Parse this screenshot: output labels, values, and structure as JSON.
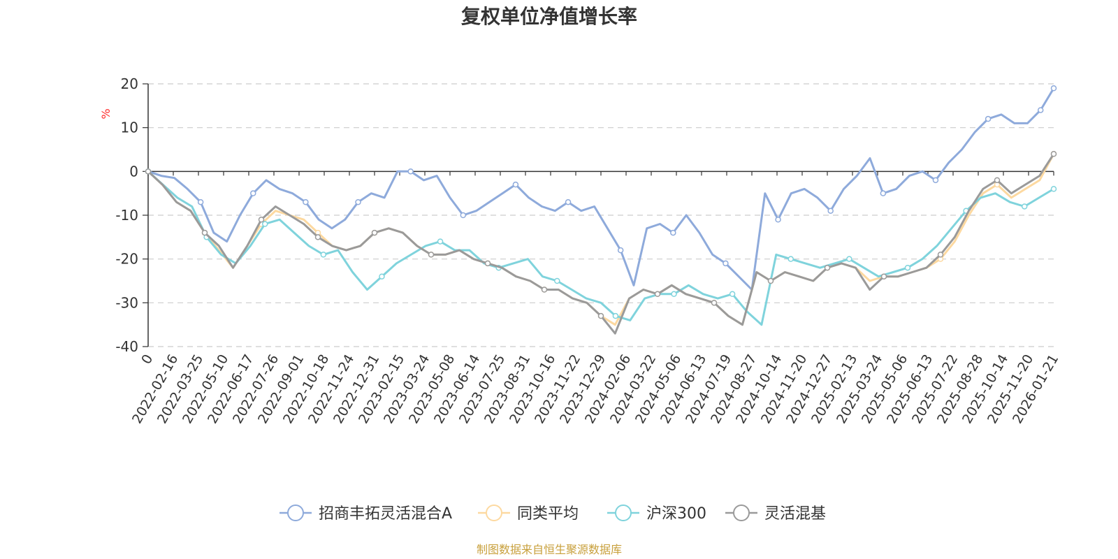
{
  "chart_data": {
    "type": "line",
    "title": "复权单位净值增长率",
    "ylabel": "%",
    "ylim": [
      -40,
      20
    ],
    "yticks": [
      20,
      10,
      0,
      -10,
      -20,
      -30,
      -40
    ],
    "x_tick_labels": [
      "0",
      "2022-02-16",
      "2022-03-25",
      "2022-05-10",
      "2022-06-17",
      "2022-07-26",
      "2022-09-01",
      "2022-10-18",
      "2022-11-24",
      "2022-12-31",
      "2023-02-15",
      "2023-03-24",
      "2023-05-08",
      "2023-06-14",
      "2023-07-25",
      "2023-08-31",
      "2023-10-16",
      "2023-11-22",
      "2023-12-29",
      "2024-02-06",
      "2024-03-22",
      "2024-05-06",
      "2024-06-13",
      "2024-07-19",
      "2024-08-27",
      "2024-10-14",
      "2024-11-20",
      "2024-12-27",
      "2025-02-13",
      "2025-03-24",
      "2025-05-06",
      "2025-06-13",
      "2025-07-22",
      "2025-08-28",
      "2025-10-14",
      "2025-11-20",
      "2026-01-21"
    ],
    "grid": "horizontal-dashed",
    "legend_position": "bottom-center",
    "series": [
      {
        "name": "招商丰拓灵活混合A",
        "color": "#8eaadb",
        "values": [
          0,
          -1,
          -1.5,
          -4,
          -7,
          -14,
          -16,
          -10,
          -5,
          -2,
          -4,
          -5,
          -7,
          -11,
          -13,
          -11,
          -7,
          -5,
          -6,
          0,
          0,
          -2,
          -1,
          -6,
          -10,
          -9,
          -7,
          -5,
          -3,
          -6,
          -8,
          -9,
          -7,
          -9,
          -8,
          -13,
          -18,
          -26,
          -13,
          -12,
          -14,
          -10,
          -14,
          -19,
          -21,
          -24,
          -27,
          -5,
          -11,
          -5,
          -4,
          -6,
          -9,
          -4,
          -1,
          3,
          -5,
          -4,
          -1,
          0,
          -2,
          2,
          5,
          9,
          12,
          13,
          11,
          11,
          14,
          19
        ]
      },
      {
        "name": "同类平均",
        "color": "#fdd9a0",
        "values": [
          0,
          -3,
          -7,
          -9,
          -14,
          -18,
          -22,
          -17,
          -12,
          -9,
          -10,
          -11,
          -14,
          -17,
          -18,
          -17,
          -14,
          -13,
          -14,
          -17,
          -19,
          -19,
          -18,
          -20,
          -21,
          -22,
          -24,
          -25,
          -27,
          -27,
          -29,
          -30,
          -33,
          -35,
          -29,
          -27,
          -28,
          -26,
          -28,
          -29,
          -30,
          -33,
          -35,
          -23,
          -25,
          -23,
          -24,
          -25,
          -22,
          -21,
          -22,
          -25,
          -24,
          -24,
          -23,
          -22,
          -20,
          -16,
          -10,
          -5,
          -3,
          -6,
          -4,
          -2,
          4
        ]
      },
      {
        "name": "沪深300",
        "color": "#7fd3dc",
        "values": [
          0,
          -3,
          -6,
          -8,
          -15,
          -19,
          -21,
          -17,
          -12,
          -11,
          -14,
          -17,
          -19,
          -18,
          -23,
          -27,
          -24,
          -21,
          -19,
          -17,
          -16,
          -18,
          -18,
          -21,
          -22,
          -21,
          -20,
          -24,
          -25,
          -27,
          -29,
          -30,
          -33,
          -34,
          -29,
          -28,
          -28,
          -26,
          -28,
          -29,
          -28,
          -32,
          -35,
          -19,
          -20,
          -21,
          -22,
          -21,
          -20,
          -22,
          -24,
          -23,
          -22,
          -20,
          -17,
          -13,
          -9,
          -6,
          -5,
          -7,
          -8,
          -6,
          -4
        ]
      },
      {
        "name": "灵活混基",
        "color": "#9a9a9a",
        "values": [
          0,
          -3,
          -7,
          -9,
          -14,
          -17,
          -22,
          -17,
          -11,
          -8,
          -10,
          -12,
          -15,
          -17,
          -18,
          -17,
          -14,
          -13,
          -14,
          -17,
          -19,
          -19,
          -18,
          -20,
          -21,
          -22,
          -24,
          -25,
          -27,
          -27,
          -29,
          -30,
          -33,
          -37,
          -29,
          -27,
          -28,
          -26,
          -28,
          -29,
          -30,
          -33,
          -35,
          -23,
          -25,
          -23,
          -24,
          -25,
          -22,
          -21,
          -22,
          -27,
          -24,
          -24,
          -23,
          -22,
          -19,
          -15,
          -9,
          -4,
          -2,
          -5,
          -3,
          -1,
          4
        ]
      }
    ]
  },
  "footer": {
    "source": "制图数据来自恒生聚源数据库"
  }
}
